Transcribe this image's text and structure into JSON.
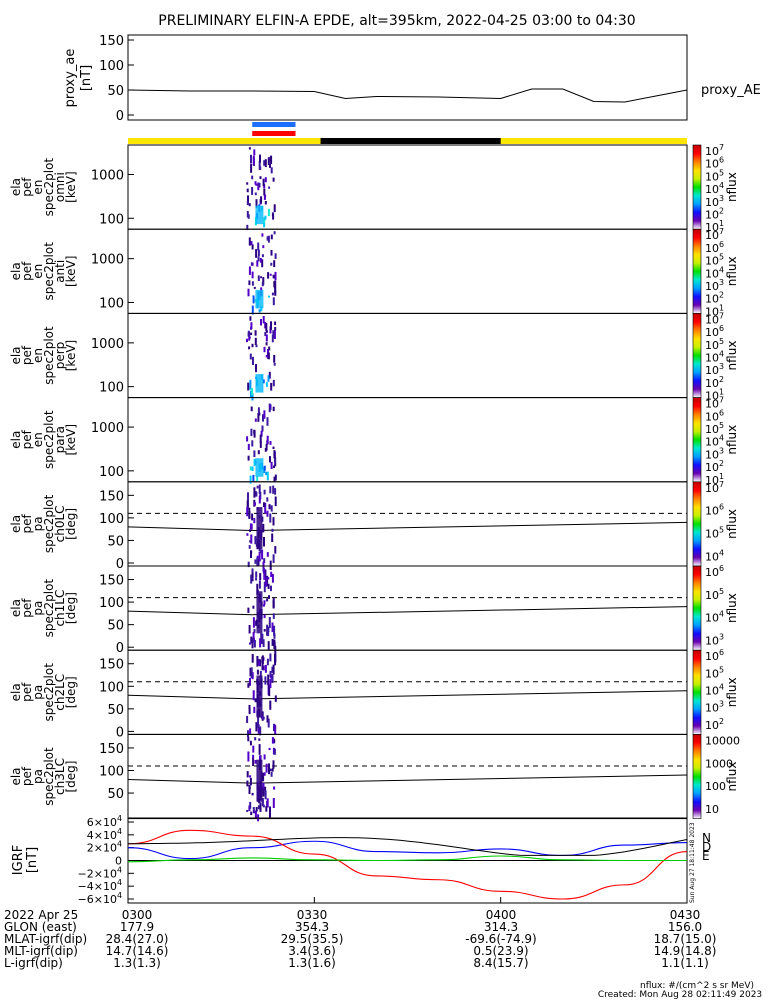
{
  "title": "PRELIMINARY ELFIN-A EPDE, alt=395km, 2022-04-25 03:00 to 04:30",
  "colorbar_label": "nflux",
  "proxy": {
    "ylabel": [
      "proxy_ae",
      "[nT]"
    ],
    "legend": "proxy_AE",
    "yticks": [
      "150",
      "100",
      "50",
      "0"
    ],
    "ylim": [
      0,
      160
    ]
  },
  "panels": [
    {
      "ylabel": [
        "ela",
        "pef",
        "en",
        "spec2plot",
        "omni",
        "[keV]"
      ],
      "yticks": [
        "1000",
        "100"
      ],
      "cbar_ticks": [
        "10^7",
        "10^6",
        "10^5",
        "10^4",
        "10^3",
        "10^2",
        "10^1"
      ]
    },
    {
      "ylabel": [
        "ela",
        "pef",
        "en",
        "spec2plot",
        "anti",
        "[keV]"
      ],
      "yticks": [
        "1000",
        "100"
      ],
      "cbar_ticks": [
        "10^7",
        "10^6",
        "10^5",
        "10^4",
        "10^3",
        "10^2",
        "10^1"
      ]
    },
    {
      "ylabel": [
        "ela",
        "pef",
        "en",
        "spec2plot",
        "perp",
        "[keV]"
      ],
      "yticks": [
        "1000",
        "100"
      ],
      "cbar_ticks": [
        "10^7",
        "10^6",
        "10^5",
        "10^4",
        "10^3",
        "10^2",
        "10^1"
      ]
    },
    {
      "ylabel": [
        "ela",
        "pef",
        "en",
        "spec2plot",
        "para",
        "[keV]"
      ],
      "yticks": [
        "1000",
        "100"
      ],
      "cbar_ticks": [
        "10^7",
        "10^6",
        "10^5",
        "10^4",
        "10^3",
        "10^2",
        "10^1"
      ]
    },
    {
      "ylabel": [
        "ela",
        "pef",
        "pa",
        "spec2plot",
        "ch0LC",
        "[deg]"
      ],
      "yticks": [
        "150",
        "100",
        "50",
        "0"
      ],
      "cbar_ticks": [
        "10^7",
        "10^6",
        "10^5",
        "10^4"
      ]
    },
    {
      "ylabel": [
        "ela",
        "pef",
        "pa",
        "spec2plot",
        "ch1LC",
        "[deg]"
      ],
      "yticks": [
        "150",
        "100",
        "50",
        "0"
      ],
      "cbar_ticks": [
        "10^6",
        "10^5",
        "10^4",
        "10^3"
      ]
    },
    {
      "ylabel": [
        "ela",
        "pef",
        "pa",
        "spec2plot",
        "ch2LC",
        "[deg]"
      ],
      "yticks": [
        "150",
        "100",
        "50",
        "0"
      ],
      "cbar_ticks": [
        "10^6",
        "10^5",
        "10^4",
        "10^3",
        "10^2"
      ]
    },
    {
      "ylabel": [
        "ela",
        "pef",
        "pa",
        "spec2plot",
        "ch3LC",
        "[deg]"
      ],
      "yticks": [
        "150",
        "100",
        "50"
      ],
      "cbar_ticks": [
        "10000",
        "1000",
        "100",
        "10"
      ]
    }
  ],
  "igrf": {
    "ylabel": [
      "IGRF",
      "[nT]"
    ],
    "yticks": [
      "6×10^4",
      "4×10^4",
      "2×10^4",
      "0",
      "−2×10^4",
      "−4×10^4",
      "−6×10^4"
    ],
    "legend": [
      "N",
      "D",
      "E"
    ],
    "side_label": "Sun Aug 27 18:11:48 2023"
  },
  "footer": {
    "rows": [
      [
        "2022 Apr 25",
        "0300",
        "0330",
        "0400",
        "0430"
      ],
      [
        "GLON (east)",
        "177.9",
        "354.3",
        "314.3",
        "156.0"
      ],
      [
        "MLAT-igrf(dip)",
        "28.4(27.0)",
        "29.5(35.5)",
        "-69.6(-74.9)",
        "18.7(15.0)"
      ],
      [
        "MLT-igrf(dip)",
        "14.7(14.6)",
        "3.4(3.6)",
        "0.5(23.9)",
        "14.9(14.8)"
      ],
      [
        "L-igrf(dip)",
        "1.3(1.3)",
        "1.3(1.6)",
        "8.4(15.7)",
        "1.1(1.1)"
      ]
    ],
    "units_note": "nflux: #/(cm^2 s sr MeV)",
    "created": "Created: Mon Aug 28 02:11:49 2023"
  },
  "colors": {
    "axes": "#000000",
    "bar_yellow": "#ffe600",
    "bar_black": "#000000",
    "bar_blue": "#1e6fff",
    "bar_red": "#ff0000",
    "igrf_N": "#0000ff",
    "igrf_D": "#ff0000",
    "igrf_E": "#00cc00",
    "igrf_total": "#000000"
  },
  "chart_data": [
    {
      "type": "line",
      "name": "proxy_AE",
      "x": [
        "03:00",
        "03:10",
        "03:20",
        "03:30",
        "03:35",
        "03:40",
        "03:50",
        "04:00",
        "04:05",
        "04:10",
        "04:15",
        "04:20",
        "04:25",
        "04:30"
      ],
      "values": [
        50,
        48,
        48,
        47,
        33,
        37,
        36,
        33,
        52,
        52,
        27,
        26,
        38,
        50
      ],
      "ylabel": "proxy_ae [nT]",
      "ylim": [
        0,
        160
      ]
    },
    {
      "type": "heatmap",
      "name": "ela pef en spec2plot omni/anti/perp/para",
      "x_range": [
        "03:19",
        "03:23"
      ],
      "ylim_keV": [
        60,
        7000
      ],
      "yscale": "log",
      "zlabel": "nflux",
      "zscale": "log"
    },
    {
      "type": "line",
      "name": "IGRF",
      "x": [
        "03:00",
        "03:10",
        "03:20",
        "03:30",
        "03:40",
        "03:50",
        "04:00",
        "04:10",
        "04:20",
        "04:30"
      ],
      "series": [
        {
          "name": "N",
          "values": [
            20000,
            3000,
            20000,
            30000,
            14000,
            12000,
            18000,
            8000,
            24000,
            28000
          ]
        },
        {
          "name": "D",
          "values": [
            26000,
            47000,
            38000,
            10000,
            -24000,
            -30000,
            -48000,
            -60000,
            -38000,
            14000
          ]
        },
        {
          "name": "E",
          "values": [
            -2000,
            1000,
            4000,
            1000,
            0,
            1000,
            7000,
            1000,
            0,
            0
          ]
        }
      ],
      "ylim": [
        -60000,
        60000
      ]
    }
  ]
}
